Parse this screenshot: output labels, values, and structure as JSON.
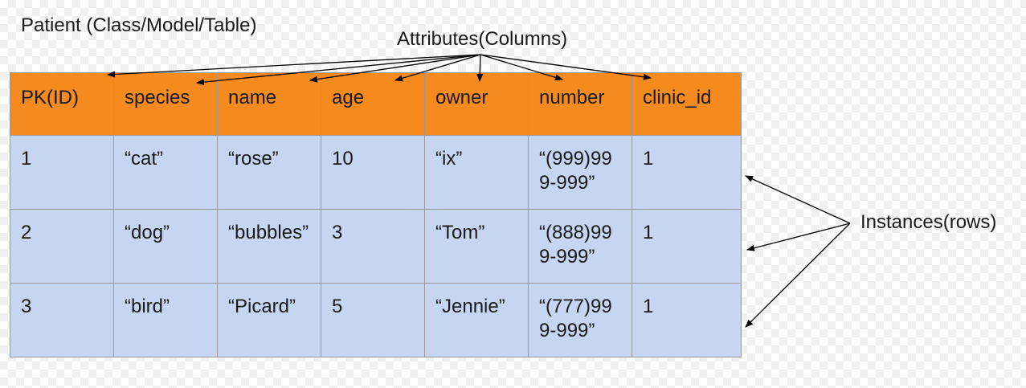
{
  "title": "Patient (Class/Model/Table)",
  "attributes_label": "Attributes(Columns)",
  "instances_label": "Instances(rows)",
  "table": {
    "headers": [
      "PK(ID)",
      "species",
      "name",
      "age",
      "owner",
      "number",
      "clinic_id"
    ],
    "rows": [
      [
        "1",
        "“cat”",
        "“rose”",
        "10",
        "“ix”",
        "“(999)999-999”",
        "1"
      ],
      [
        "2",
        "“dog”",
        "“bubbles”",
        "3",
        "“Tom”",
        "“(888)999-999”",
        "1"
      ],
      [
        "3",
        "“bird”",
        "“Picard”",
        "5",
        "“Jennie”",
        "“(777)999-999”",
        "1"
      ]
    ]
  },
  "colors": {
    "header": "#f58a1f",
    "rows": "#c5d5f2",
    "grid": "#9a9a9a"
  }
}
